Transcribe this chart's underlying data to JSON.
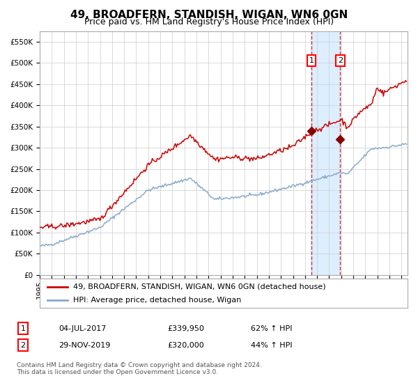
{
  "title": "49, BROADFERN, STANDISH, WIGAN, WN6 0GN",
  "subtitle": "Price paid vs. HM Land Registry's House Price Index (HPI)",
  "ylim": [
    0,
    575000
  ],
  "yticks": [
    0,
    50000,
    100000,
    150000,
    200000,
    250000,
    300000,
    350000,
    400000,
    450000,
    500000,
    550000
  ],
  "xlim_start": 1995.0,
  "xlim_end": 2025.5,
  "red_line_color": "#cc0000",
  "blue_line_color": "#88aacc",
  "marker_color": "#880000",
  "sale1_date": 2017.54,
  "sale1_value": 339950,
  "sale2_date": 2019.92,
  "sale2_value": 320000,
  "shade_color": "#ddeeff",
  "dashed_line_color": "#cc0000",
  "legend_label_red": "49, BROADFERN, STANDISH, WIGAN, WN6 0GN (detached house)",
  "legend_label_blue": "HPI: Average price, detached house, Wigan",
  "table_row1": [
    "1",
    "04-JUL-2017",
    "£339,950",
    "62% ↑ HPI"
  ],
  "table_row2": [
    "2",
    "29-NOV-2019",
    "£320,000",
    "44% ↑ HPI"
  ],
  "footnote": "Contains HM Land Registry data © Crown copyright and database right 2024.\nThis data is licensed under the Open Government Licence v3.0.",
  "background_color": "#ffffff",
  "grid_color": "#cccccc"
}
